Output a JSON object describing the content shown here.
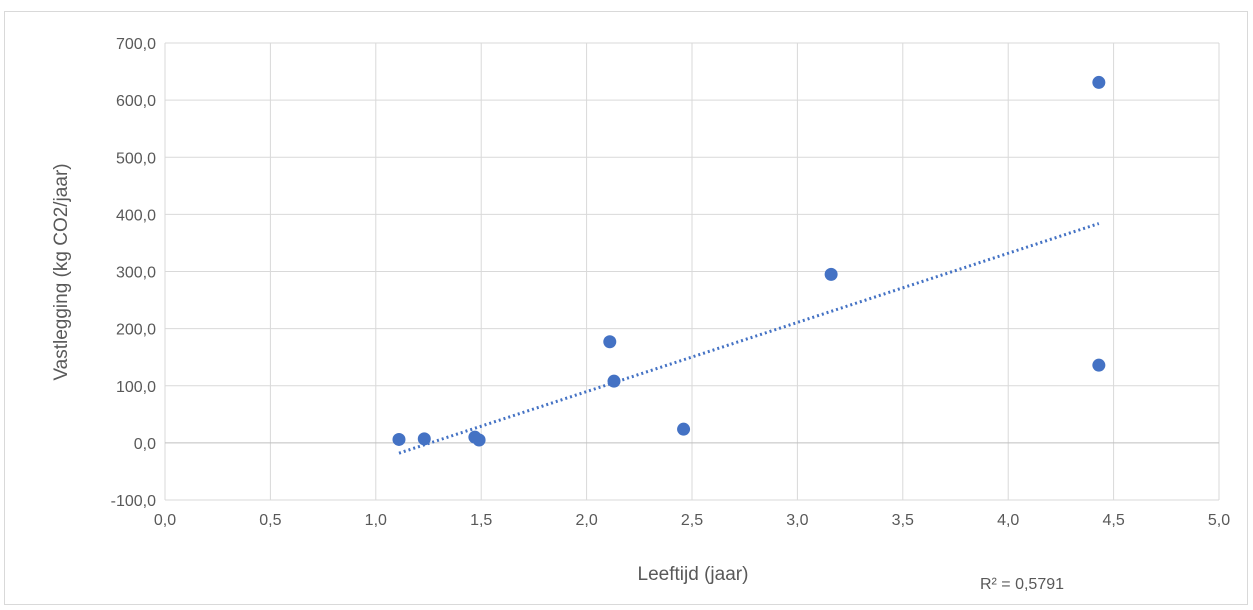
{
  "chart_data": {
    "type": "scatter",
    "title": "",
    "xlabel": "Leeftijd (jaar)",
    "ylabel": "Vastlegging (kg CO2/jaar)",
    "xlim": [
      0,
      5
    ],
    "ylim": [
      -100,
      700
    ],
    "xticks": [
      0,
      0.5,
      1,
      1.5,
      2,
      2.5,
      3,
      3.5,
      4,
      4.5,
      5
    ],
    "yticks": [
      -100,
      0,
      100,
      200,
      300,
      400,
      500,
      600,
      700
    ],
    "xtick_labels": [
      "0,0",
      "0,5",
      "1,0",
      "1,5",
      "2,0",
      "2,5",
      "3,0",
      "3,5",
      "4,0",
      "4,5",
      "5,0"
    ],
    "ytick_labels": [
      "-100,0",
      "0,0",
      "100,0",
      "200,0",
      "300,0",
      "400,0",
      "500,0",
      "600,0",
      "700,0"
    ],
    "grid": true,
    "marker_color": "#4472c4",
    "points": [
      {
        "x": 1.11,
        "y": 6
      },
      {
        "x": 1.23,
        "y": 7
      },
      {
        "x": 1.47,
        "y": 10
      },
      {
        "x": 1.49,
        "y": 5
      },
      {
        "x": 2.11,
        "y": 177
      },
      {
        "x": 2.13,
        "y": 108
      },
      {
        "x": 2.46,
        "y": 24
      },
      {
        "x": 3.16,
        "y": 295
      },
      {
        "x": 4.43,
        "y": 631
      },
      {
        "x": 4.43,
        "y": 136
      }
    ],
    "trendline": {
      "type": "linear",
      "style": "dotted",
      "x_start": 1.11,
      "x_end": 4.43,
      "y_start": -18,
      "y_end": 384,
      "r2_label": "R² = 0,5791"
    }
  }
}
